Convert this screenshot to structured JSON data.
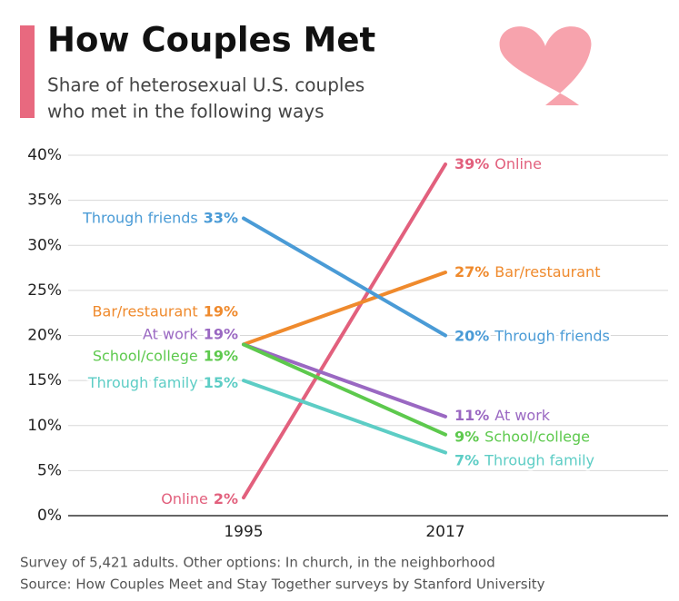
{
  "chart_data": {
    "type": "line",
    "title": "How Couples Met",
    "subtitle": [
      "Share of heterosexual U.S. couples",
      "who met in the following ways"
    ],
    "x": [
      "1995",
      "2017"
    ],
    "series": [
      {
        "name": "Online",
        "color": "#e2607d",
        "values": [
          2,
          39
        ],
        "value_labels": [
          "2%",
          "39%"
        ]
      },
      {
        "name": "Bar/restaurant",
        "color": "#ef8a2d",
        "values": [
          19,
          27
        ],
        "value_labels": [
          "19%",
          "27%"
        ]
      },
      {
        "name": "Through friends",
        "color": "#4a9bd6",
        "values": [
          33,
          20
        ],
        "value_labels": [
          "33%",
          "20%"
        ]
      },
      {
        "name": "At work",
        "color": "#9a68c2",
        "values": [
          19,
          11
        ],
        "value_labels": [
          "19%",
          "11%"
        ]
      },
      {
        "name": "School/college",
        "color": "#5dc94d",
        "values": [
          19,
          9
        ],
        "value_labels": [
          "19%",
          "9%"
        ]
      },
      {
        "name": "Through family",
        "color": "#5dcdc5",
        "values": [
          15,
          7
        ],
        "value_labels": [
          "15%",
          "7%"
        ]
      }
    ],
    "ylim": [
      0,
      40
    ],
    "yticks": [
      {
        "value": 0,
        "label": "0%"
      },
      {
        "value": 5,
        "label": "5%"
      },
      {
        "value": 10,
        "label": "10%"
      },
      {
        "value": 15,
        "label": "15%"
      },
      {
        "value": 20,
        "label": "20%"
      },
      {
        "value": 25,
        "label": "25%"
      },
      {
        "value": 30,
        "label": "30%"
      },
      {
        "value": 35,
        "label": "35%"
      },
      {
        "value": 40,
        "label": "40%"
      }
    ],
    "grid": true,
    "notes": "Survey of 5,421 adults. Other options: In church, in the neighborhood",
    "source": "Source: How Couples Meet and Stay Together surveys by Stanford University"
  }
}
